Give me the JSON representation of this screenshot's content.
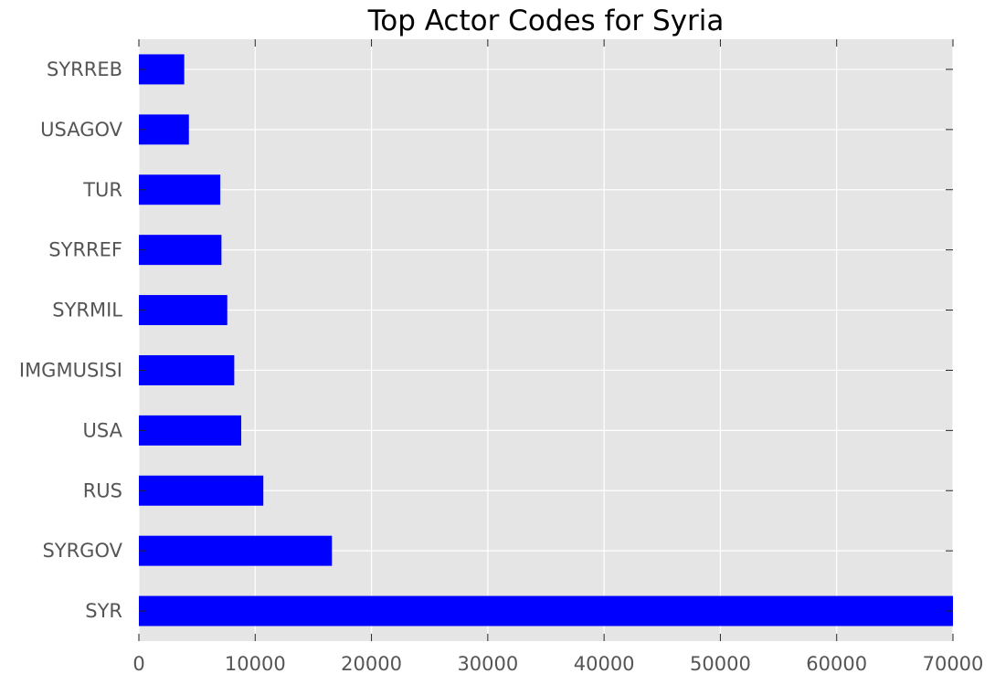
{
  "chart_data": {
    "type": "bar",
    "orientation": "horizontal",
    "title": "Top Actor Codes for Syria",
    "xlabel": "",
    "ylabel": "",
    "categories": [
      "SYR",
      "SYRGOV",
      "RUS",
      "USA",
      "IMGMUSISI",
      "SYRMIL",
      "SYRREF",
      "TUR",
      "USAGOV",
      "SYRREB"
    ],
    "values": [
      70000,
      16600,
      10700,
      8800,
      8200,
      7600,
      7100,
      7000,
      4300,
      3900
    ],
    "xlim": [
      0,
      70000
    ],
    "xticks": [
      0,
      10000,
      20000,
      30000,
      40000,
      50000,
      60000,
      70000
    ],
    "xtick_labels": [
      "0",
      "10000",
      "20000",
      "30000",
      "40000",
      "50000",
      "60000",
      "70000"
    ],
    "grid": true,
    "legend": "none",
    "colors": {
      "bar": "#0000ff",
      "plot_background": "#e5e5e5",
      "grid": "#ffffff",
      "tick_label": "#555555",
      "title": "#000000"
    }
  }
}
